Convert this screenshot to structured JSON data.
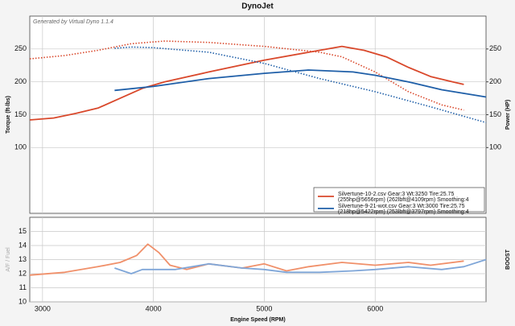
{
  "chart_data": [
    {
      "type": "line",
      "title": "DynoJet",
      "note": "Generated by Virtual Dyno 1.1.4",
      "ylabel": "Torque (ft-lbs)",
      "y2label": "Power (HP)",
      "xlim": [
        2885,
        7000
      ],
      "xticks": [
        3000,
        4000,
        5000,
        6000
      ],
      "ylim": [
        0,
        300
      ],
      "yticks": [
        100,
        150,
        200,
        250
      ],
      "y2lim": [
        0,
        300
      ],
      "y2ticks": [
        100,
        150,
        200,
        250
      ],
      "grid": true,
      "legend": [
        {
          "color": "#d9482b",
          "line1": "Silvertune-10-2.csv Gear:3 Wt:3250 Tire:25.75",
          "line2": "(255hp@5656rpm) (262lbft@4109rpm) Smoothing:4"
        },
        {
          "color": "#1f5fa8",
          "line1": "Silvertune-9-21-wot.csv Gear:3 Wt:3000 Tire:25.75",
          "line2": "(218hp@5422rpm) (253lbft@3797rpm) Smoothing:4"
        }
      ],
      "series": [
        {
          "color": "#d9482b",
          "style": "solid",
          "axis": "y2",
          "x": [
            2885,
            3100,
            3300,
            3500,
            3700,
            3900,
            4100,
            4500,
            5000,
            5500,
            5700,
            5900,
            6100,
            6300,
            6500,
            6700,
            6800
          ],
          "values": [
            142,
            145,
            152,
            160,
            175,
            190,
            200,
            215,
            233,
            248,
            254,
            248,
            238,
            222,
            208,
            200,
            196
          ]
        },
        {
          "color": "#d9482b",
          "style": "dotted",
          "x": [
            2885,
            3200,
            3500,
            3800,
            4100,
            4500,
            5000,
            5500,
            5700,
            6000,
            6300,
            6600,
            6800
          ],
          "values": [
            235,
            240,
            248,
            258,
            262,
            260,
            254,
            245,
            238,
            215,
            185,
            165,
            157
          ]
        },
        {
          "color": "#1f5fa8",
          "style": "solid",
          "axis": "y2",
          "x": [
            3650,
            4000,
            4500,
            5000,
            5400,
            5800,
            6000,
            6300,
            6600,
            7000
          ],
          "values": [
            187,
            193,
            205,
            213,
            218,
            215,
            210,
            200,
            188,
            177
          ]
        },
        {
          "color": "#1f5fa8",
          "style": "dotted",
          "x": [
            3650,
            3800,
            4000,
            4500,
            5000,
            5500,
            6000,
            6500,
            7000
          ],
          "values": [
            251,
            253,
            252,
            245,
            228,
            205,
            185,
            162,
            138
          ]
        }
      ]
    },
    {
      "type": "line",
      "ylabel": "A/F / Fuel",
      "y2label": "BOOST",
      "xlabel": "Engine Speed (RPM)",
      "xlim": [
        2885,
        7000
      ],
      "xticks": [
        3000,
        4000,
        5000,
        6000
      ],
      "ylim": [
        10,
        16
      ],
      "yticks": [
        10,
        11,
        12,
        13,
        14,
        15
      ],
      "grid": true,
      "series": [
        {
          "color": "#f0906a",
          "style": "solid",
          "x": [
            2885,
            3200,
            3500,
            3700,
            3850,
            3950,
            4050,
            4150,
            4300,
            4500,
            4800,
            5000,
            5200,
            5400,
            5700,
            6000,
            6300,
            6500,
            6800
          ],
          "values": [
            11.9,
            12.1,
            12.5,
            12.8,
            13.3,
            14.1,
            13.5,
            12.6,
            12.3,
            12.7,
            12.4,
            12.7,
            12.2,
            12.5,
            12.8,
            12.6,
            12.8,
            12.6,
            12.9
          ]
        },
        {
          "color": "#7fa6d8",
          "style": "solid",
          "x": [
            3650,
            3800,
            3900,
            4200,
            4500,
            4800,
            5000,
            5200,
            5500,
            5800,
            6000,
            6300,
            6600,
            6800,
            7000
          ],
          "values": [
            12.4,
            12.0,
            12.3,
            12.3,
            12.7,
            12.4,
            12.3,
            12.1,
            12.1,
            12.2,
            12.3,
            12.5,
            12.3,
            12.5,
            13.0
          ]
        }
      ]
    }
  ]
}
